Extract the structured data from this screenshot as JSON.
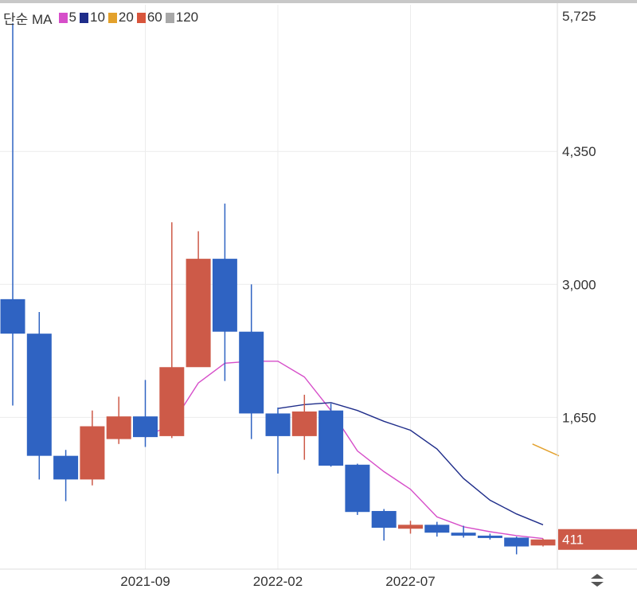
{
  "legend": {
    "prefix": "단순 MA",
    "items": [
      {
        "label": "5",
        "color": "#d64ec9"
      },
      {
        "label": "10",
        "color": "#1f2d8a"
      },
      {
        "label": "20",
        "color": "#e3a12c"
      },
      {
        "label": "60",
        "color": "#d8553c"
      },
      {
        "label": "120",
        "color": "#a8a8a8"
      }
    ]
  },
  "colors": {
    "up": "#cd5a48",
    "down": "#2f63c2",
    "ma5": "#d64ec9",
    "ma10": "#1f2d8a",
    "ma20": "#e3a12c",
    "grid": "#ececec",
    "axis_text": "#333333",
    "last_price_bg": "#cd5a48"
  },
  "last_price_label": "411",
  "chart_data": {
    "type": "candlestick",
    "interval": "monthly",
    "y_ticks": [
      1650,
      3000,
      4350,
      5725
    ],
    "y_tick_labels": [
      "1,650",
      "3,000",
      "4,350",
      "5,725"
    ],
    "x_tick_labels": [
      "2021-09",
      "2022-02",
      "2022-07"
    ],
    "x_tick_index": [
      5,
      10,
      15
    ],
    "ylim": [
      110,
      5725
    ],
    "grid": true,
    "last_price": 411,
    "candles": [
      {
        "open": 2850,
        "close": 2500,
        "high": 5650,
        "low": 1770
      },
      {
        "open": 2500,
        "close": 1260,
        "high": 2720,
        "low": 1020
      },
      {
        "open": 1260,
        "close": 1020,
        "high": 1320,
        "low": 800
      },
      {
        "open": 1020,
        "close": 1560,
        "high": 1720,
        "low": 960
      },
      {
        "open": 1430,
        "close": 1660,
        "high": 1860,
        "low": 1380
      },
      {
        "open": 1660,
        "close": 1450,
        "high": 2030,
        "low": 1350
      },
      {
        "open": 1460,
        "close": 2160,
        "high": 3630,
        "low": 1440
      },
      {
        "open": 2160,
        "close": 3260,
        "high": 3540,
        "low": 2170
      },
      {
        "open": 3260,
        "close": 2520,
        "high": 3820,
        "low": 2020
      },
      {
        "open": 2520,
        "close": 1690,
        "high": 3000,
        "low": 1430
      },
      {
        "open": 1690,
        "close": 1460,
        "high": 1750,
        "low": 1080
      },
      {
        "open": 1460,
        "close": 1710,
        "high": 1880,
        "low": 1220
      },
      {
        "open": 1720,
        "close": 1160,
        "high": 1790,
        "low": 1150
      },
      {
        "open": 1170,
        "close": 690,
        "high": 1180,
        "low": 660
      },
      {
        "open": 700,
        "close": 530,
        "high": 720,
        "low": 400
      },
      {
        "open": 520,
        "close": 560,
        "high": 600,
        "low": 470
      },
      {
        "open": 560,
        "close": 480,
        "high": 590,
        "low": 440
      },
      {
        "open": 480,
        "close": 450,
        "high": 550,
        "low": 430
      },
      {
        "open": 450,
        "close": 430,
        "high": 470,
        "low": 410
      },
      {
        "open": 430,
        "close": 340,
        "high": 440,
        "low": 260
      },
      {
        "open": 350,
        "close": 411,
        "high": 420,
        "low": 340
      }
    ],
    "series": [
      {
        "name": "5",
        "x": [
          5,
          6,
          7,
          8,
          9,
          10,
          11,
          12,
          13,
          14,
          15,
          16,
          17,
          18,
          19,
          20
        ],
        "values": [
          1450,
          1580,
          2000,
          2200,
          2220,
          2220,
          2060,
          1720,
          1310,
          1100,
          920,
          640,
          540,
          490,
          450,
          420
        ]
      },
      {
        "name": "10",
        "x": [
          10,
          11,
          12,
          13,
          14,
          15,
          16,
          17,
          18,
          19,
          20
        ],
        "values": [
          1740,
          1780,
          1800,
          1720,
          1610,
          1520,
          1330,
          1030,
          810,
          670,
          560
        ]
      },
      {
        "name": "20",
        "x": [
          19.6,
          20.6
        ],
        "values": [
          1380,
          1260
        ]
      }
    ]
  }
}
